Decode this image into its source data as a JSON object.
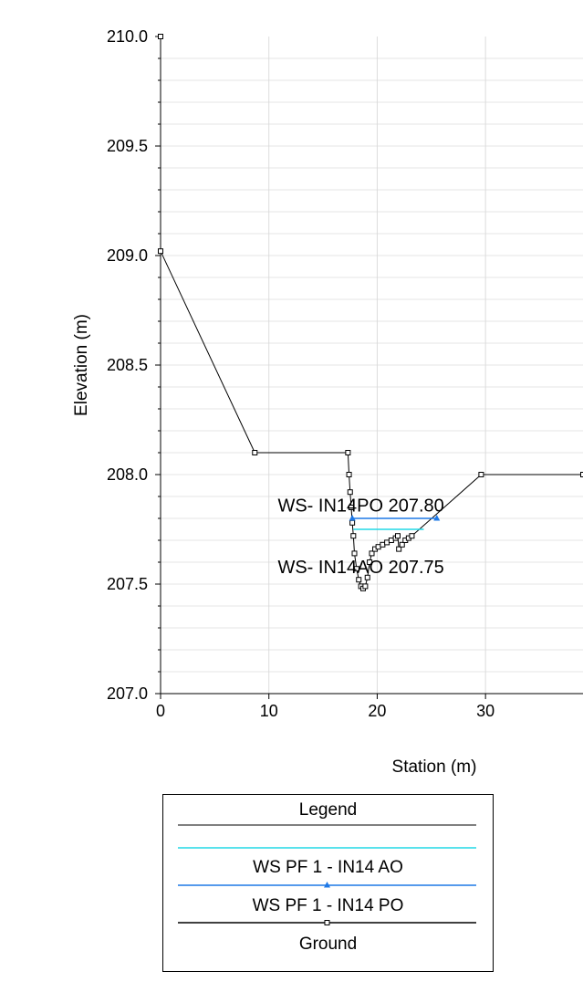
{
  "chart_data": {
    "type": "line",
    "xlabel": "Station (m)",
    "ylabel": "Elevation (m)",
    "xlim": [
      0,
      39
    ],
    "ylim": [
      207.0,
      210.0
    ],
    "x_ticks": [
      0,
      10,
      20,
      30
    ],
    "y_ticks": [
      "207.0",
      "207.5",
      "208.0",
      "208.5",
      "209.0",
      "209.5",
      "210.0"
    ],
    "grid": true,
    "series": [
      {
        "name": "Ground",
        "color": "#000000",
        "marker": "square",
        "points": [
          [
            0,
            210.0
          ],
          [
            0,
            209.02
          ],
          [
            8.7,
            208.1
          ],
          [
            17.3,
            208.1
          ],
          [
            17.4,
            208.0
          ],
          [
            17.5,
            207.92
          ],
          [
            17.6,
            207.85
          ],
          [
            17.7,
            207.78
          ],
          [
            17.8,
            207.72
          ],
          [
            17.9,
            207.64
          ],
          [
            18.1,
            207.57
          ],
          [
            18.3,
            207.52
          ],
          [
            18.5,
            207.49
          ],
          [
            18.7,
            207.48
          ],
          [
            18.9,
            207.49
          ],
          [
            19.1,
            207.53
          ],
          [
            19.3,
            207.6
          ],
          [
            19.5,
            207.64
          ],
          [
            19.8,
            207.66
          ],
          [
            20.1,
            207.67
          ],
          [
            20.5,
            207.68
          ],
          [
            20.9,
            207.69
          ],
          [
            21.3,
            207.7
          ],
          [
            21.7,
            207.71
          ],
          [
            21.9,
            207.72
          ],
          [
            22.0,
            207.66
          ],
          [
            22.3,
            207.68
          ],
          [
            22.6,
            207.7
          ],
          [
            22.9,
            207.71
          ],
          [
            23.2,
            207.72
          ],
          [
            29.6,
            208.0
          ],
          [
            39,
            208.0
          ]
        ]
      },
      {
        "name": "WS PF 1 - IN14 PO",
        "color": "#1e78e6",
        "marker": "triangle",
        "points": [
          [
            17.7,
            207.8
          ],
          [
            25.5,
            207.8
          ]
        ]
      },
      {
        "name": "WS PF 1 - IN14 AO",
        "color": "#22d8e6",
        "marker": "none",
        "points": [
          [
            17.8,
            207.75
          ],
          [
            24.3,
            207.75
          ]
        ]
      }
    ],
    "annotations": [
      {
        "text": "WS- IN14PO 207.80",
        "x": 18.5,
        "y": 207.86
      },
      {
        "text": "WS- IN14AO 207.75",
        "x": 18.5,
        "y": 207.58
      }
    ]
  },
  "legend": {
    "title": "Legend",
    "entries": [
      {
        "label": "WS PF 1 - IN14 AO",
        "color": "#22d8e6",
        "marker": "none"
      },
      {
        "label": "WS PF 1 - IN14 PO",
        "color": "#1e78e6",
        "marker": "triangle"
      },
      {
        "label": "Ground",
        "color": "#000000",
        "marker": "square"
      }
    ]
  }
}
